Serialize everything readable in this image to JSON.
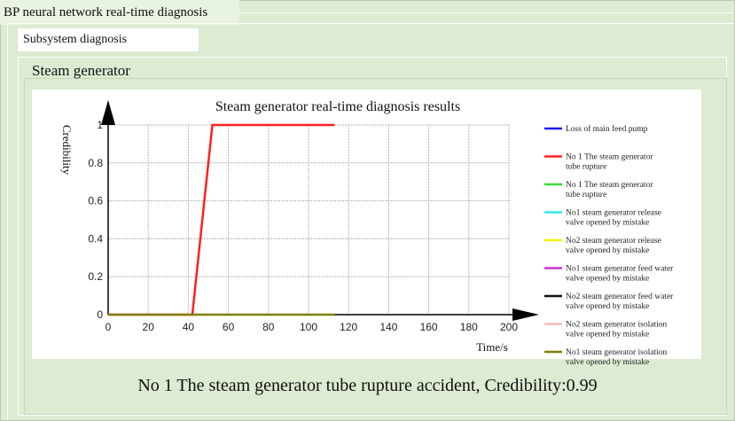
{
  "window": {
    "title": "BP neural network real-time diagnosis"
  },
  "tabs": {
    "subsystem": "Subsystem diagnosis"
  },
  "group": {
    "title": "Steam generator"
  },
  "chart_data": {
    "type": "line",
    "title": "Steam generator real-time diagnosis results",
    "xlabel": "Time/s",
    "ylabel": "Credibility",
    "xlim": [
      0,
      200
    ],
    "ylim": [
      0,
      1
    ],
    "x_ticks": [
      "0",
      "20",
      "40",
      "60",
      "80",
      "100",
      "120",
      "140",
      "160",
      "180",
      "200"
    ],
    "y_ticks": [
      "0",
      "0.2",
      "0.4",
      "0.6",
      "0.8",
      "1"
    ],
    "grid": true,
    "legend_position": "right",
    "series": [
      {
        "name": "Loss of main feed pump",
        "name_lines": [
          "Loss of main feed pump"
        ],
        "color": "#1a1aff",
        "points": []
      },
      {
        "name": "No 1 The steam generator tube rupture",
        "name_lines": [
          "No 1 The steam generator",
          "tube rupture"
        ],
        "color": "#ff2020",
        "points": [
          [
            0,
            0
          ],
          [
            42,
            0
          ],
          [
            52,
            1
          ],
          [
            113,
            1
          ]
        ]
      },
      {
        "name": "No 1 The steam generator tube rupture",
        "name_lines": [
          "No 1 The steam generator",
          "tube rupture"
        ],
        "color": "#33dd33",
        "points": []
      },
      {
        "name": "No1 steam generator release valve opened by mistake",
        "name_lines": [
          "No1 steam generator release",
          "valve opened by mistake"
        ],
        "color": "#33e8ee",
        "points": []
      },
      {
        "name": "No2 steam generator release valve opened by mistake",
        "name_lines": [
          "No2 steam generator release",
          "valve opened by mistake"
        ],
        "color": "#f2f20a",
        "points": []
      },
      {
        "name": "No1 steam generator feed water valve opened by mistake",
        "name_lines": [
          "No1 steam generator feed water",
          "valve opened by mistake"
        ],
        "color": "#cc33cc",
        "points": []
      },
      {
        "name": "No2 steam generator feed water valve opened by mistake",
        "name_lines": [
          "No2 steam generator feed water",
          "valve opened by mistake"
        ],
        "color": "#111111",
        "points": []
      },
      {
        "name": "No2 steam generator isolation valve opened by mistake",
        "name_lines": [
          "No2 steam generator isolation",
          "valve opened by mistake"
        ],
        "color": "#f4b8b8",
        "points": []
      },
      {
        "name": "No1 steam generator isolation valve opened by mistake",
        "name_lines": [
          "No1 steam generator isolation",
          "valve opened by mistake"
        ],
        "color": "#808000",
        "points": [
          [
            0,
            0
          ],
          [
            113,
            0
          ]
        ]
      }
    ]
  },
  "result": {
    "text": "No 1 The steam generator tube rupture accident, Credibility:0.99"
  }
}
